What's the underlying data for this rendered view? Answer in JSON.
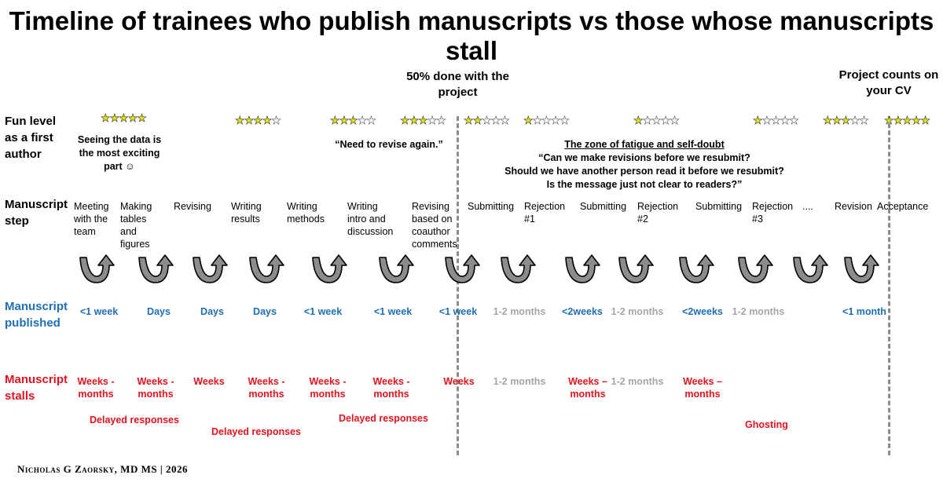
{
  "title": "Timeline of trainees who publish manuscripts vs those whose manuscripts stall",
  "milestones": [
    {
      "text": "50% done with the project"
    },
    {
      "text": "Project counts on your CV"
    }
  ],
  "row_labels": {
    "fun": "Fun level as a first author",
    "step": "Manuscript step",
    "published": "Manuscript published",
    "stalls": "Manuscript stalls"
  },
  "fun_ratings": [
    5,
    4,
    3,
    3,
    2,
    1,
    1,
    1,
    3,
    5
  ],
  "rating_max": 5,
  "notes": {
    "exciting": "Seeing the data is the most exciting part ☺",
    "revise_again": "“Need to revise again.”",
    "zone_title": "The zone of fatigue and self-doubt",
    "zone_line1": "“Can we make revisions before we resubmit?",
    "zone_line2": "Should we have another person read it before we resubmit?",
    "zone_line3": "Is the message just not clear to readers?”"
  },
  "steps": [
    "Meeting with the team",
    "Making tables and figures",
    "Revising",
    "Writing results",
    "Writing methods",
    "Writing intro and discussion",
    "Revising based on coauthor comments",
    "Submitting",
    "Rejection #1",
    "Submitting",
    "Rejection #2",
    "Submitting",
    "Rejection #3",
    "....",
    "Revision",
    "Acceptance"
  ],
  "published_times": [
    {
      "text": "<1 week",
      "color": "blue"
    },
    {
      "text": "Days",
      "color": "blue"
    },
    {
      "text": "Days",
      "color": "blue"
    },
    {
      "text": "Days",
      "color": "blue"
    },
    {
      "text": "<1 week",
      "color": "blue"
    },
    {
      "text": "<1 week",
      "color": "blue"
    },
    {
      "text": "<1 week",
      "color": "blue"
    },
    {
      "text": "1-2 months",
      "color": "gray"
    },
    {
      "text": "<2weeks",
      "color": "blue"
    },
    {
      "text": "1-2 months",
      "color": "gray"
    },
    {
      "text": "<2weeks",
      "color": "blue"
    },
    {
      "text": "1-2 months",
      "color": "gray"
    },
    {
      "text": "<1 month",
      "color": "blue"
    }
  ],
  "stall_times": [
    {
      "text": "Weeks - months",
      "color": "red"
    },
    {
      "text": "Weeks - months",
      "color": "red"
    },
    {
      "text": "Weeks",
      "color": "red"
    },
    {
      "text": "Weeks - months",
      "color": "red"
    },
    {
      "text": "Weeks - months",
      "color": "red"
    },
    {
      "text": "Weeks - months",
      "color": "red"
    },
    {
      "text": "Weeks",
      "color": "red"
    },
    {
      "text": "1-2 months",
      "color": "gray"
    },
    {
      "text": "Weeks – months",
      "color": "red"
    },
    {
      "text": "1-2 months",
      "color": "gray"
    },
    {
      "text": "Weeks – months",
      "color": "red"
    }
  ],
  "stall_reasons": [
    "Delayed responses",
    "Delayed responses",
    "Delayed responses",
    "Ghosting"
  ],
  "footer": "Nicholas G Zaorsky, MD MS | 2026",
  "colors": {
    "blue": "#1f6fb5",
    "red": "#e0141e",
    "gray": "#a6a6a6",
    "star": "#e6e600",
    "arrow": "#8c8c8c"
  }
}
